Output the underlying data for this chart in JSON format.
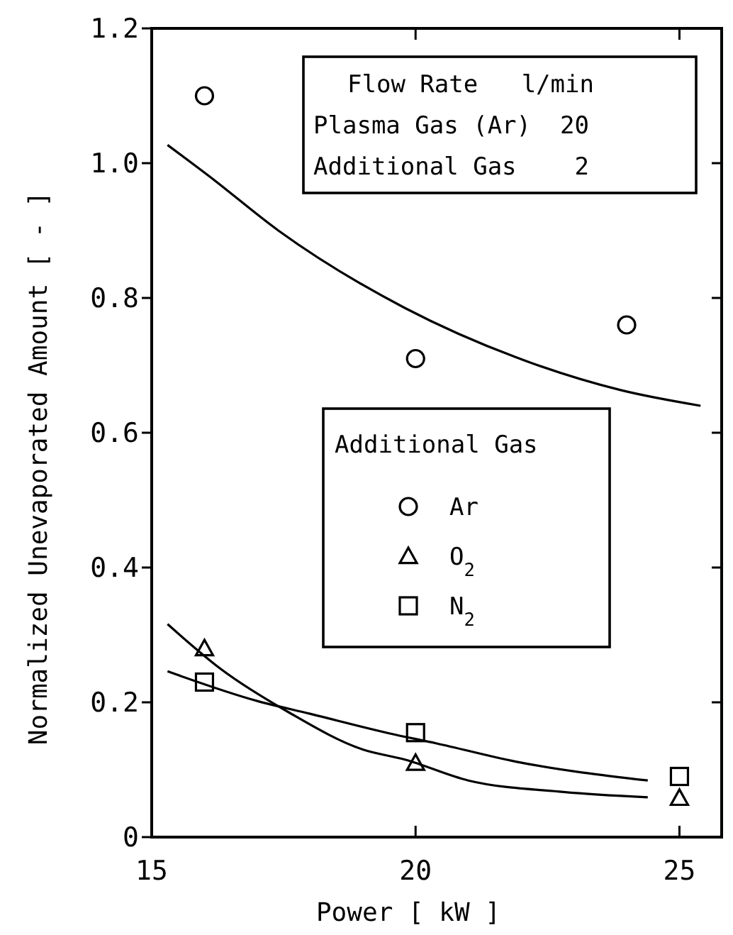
{
  "chart_data": {
    "type": "scatter",
    "xlabel": "Power [ kW ]",
    "ylabel": "Normalized Unevaporated Amount [ - ]",
    "legend_title": "Additional Gas",
    "legend": "center",
    "grid": false,
    "xlim": [
      15,
      25.8
    ],
    "xticks": [
      15,
      20,
      25
    ],
    "ylim": [
      0,
      1.2
    ],
    "yticks": [
      0,
      {
        "value": 0.2,
        "label": "0.2"
      },
      {
        "value": 0.4,
        "label": "0.4"
      },
      {
        "value": 0.6,
        "label": "0.6"
      },
      {
        "value": 0.8,
        "label": "0.8"
      },
      {
        "value": 1.0,
        "label": "1.0"
      },
      {
        "value": 1.2,
        "label": "1.2"
      }
    ],
    "annotations": [
      "Flow Rate   l/min",
      "Plasma Gas (Ar)  20",
      "Additional Gas    2"
    ],
    "series": [
      {
        "name": "Ar",
        "marker": "circle",
        "color": "#000000",
        "x": [
          16,
          20,
          24
        ],
        "values": [
          1.1,
          0.71,
          0.76
        ]
      },
      {
        "name": "O$_{2}$",
        "marker": "triangle",
        "color": "#000000",
        "x": [
          16,
          20,
          25
        ],
        "values": [
          0.28,
          0.11,
          0.058
        ]
      },
      {
        "name": "N$_{2}$",
        "marker": "square",
        "color": "#000000",
        "x": [
          16,
          20,
          25
        ],
        "values": [
          0.23,
          0.155,
          0.09
        ]
      },
      {
        "type": "line",
        "marker": "none",
        "color": "#000000",
        "x": [
          15.3,
          16.1,
          17.4,
          19.8,
          21.9,
          23.9,
          25.4
        ],
        "values": [
          1.027,
          0.98,
          0.9,
          0.785,
          0.712,
          0.663,
          0.64
        ]
      },
      {
        "type": "line",
        "marker": "none",
        "color": "#000000",
        "x": [
          15.3,
          16.3,
          17.6,
          19,
          19.8,
          21,
          22.8,
          24.4
        ],
        "values": [
          0.316,
          0.25,
          0.185,
          0.13,
          0.115,
          0.084,
          0.067,
          0.059
        ]
      },
      {
        "type": "line",
        "marker": "none",
        "color": "#000000",
        "x": [
          15.3,
          17,
          18,
          19.5,
          20.4,
          21.9,
          24.4
        ],
        "values": [
          0.246,
          0.202,
          0.183,
          0.154,
          0.139,
          0.112,
          0.084
        ]
      }
    ]
  }
}
